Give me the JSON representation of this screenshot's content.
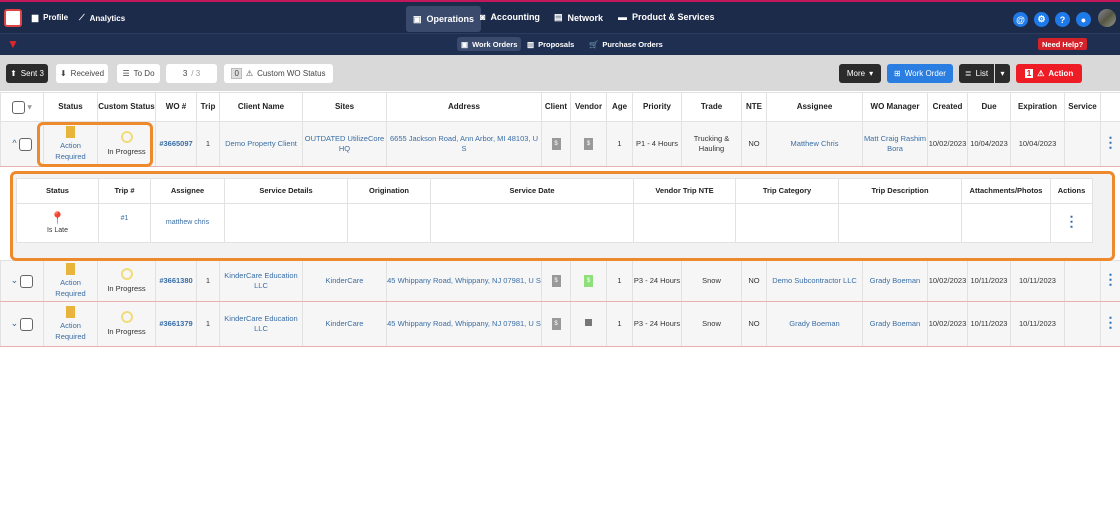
{
  "nav": {
    "items": [
      {
        "label": "Profile",
        "icon": "building-icon"
      },
      {
        "label": "Analytics",
        "icon": "chart-line-icon"
      }
    ],
    "main": [
      {
        "label": "Operations",
        "icon": "clipboard-icon",
        "active": true
      },
      {
        "label": "Accounting",
        "icon": "money-icon"
      },
      {
        "label": "Network",
        "icon": "network-icon"
      },
      {
        "label": "Product & Services",
        "icon": "briefcase-icon"
      }
    ],
    "right_icons": [
      "at-icon",
      "gear-icon",
      "help-icon",
      "chat-icon"
    ]
  },
  "subnav": {
    "items": [
      "Work Orders",
      "Proposals",
      "Purchase Orders"
    ],
    "need_help": "Need Help?"
  },
  "toolbar": {
    "sent": "Sent 3",
    "received": "Received",
    "todo": "To Do",
    "page_current": "3",
    "page_total": "/ 3",
    "custom_count": "0",
    "custom_status": "Custom WO Status",
    "more": "More",
    "work_order": "Work Order",
    "list": "List",
    "action_count": "1",
    "action": "Action"
  },
  "colors": {
    "navy": "#1d2b4b",
    "accent_blue": "#1e7ae8",
    "action_red": "#ee1c25",
    "highlight_orange": "#ee8a2e"
  },
  "columns": [
    "Status",
    "Custom Status",
    "WO #",
    "Trip",
    "Client Name",
    "Sites",
    "Address",
    "Client",
    "Vendor",
    "Age",
    "Priority",
    "Trade",
    "NTE",
    "Assignee",
    "WO Manager",
    "Created",
    "Due",
    "Expiration",
    "Service"
  ],
  "rows": [
    {
      "status": "Action Required",
      "custom": "In Progress",
      "wo": "#3665097",
      "trip": "1",
      "client": "Demo Property Client",
      "site": "OUTDATED UtilizeCore HQ",
      "address": "6655 Jackson Road, Ann Arbor, MI 48103, U S",
      "age": "1",
      "priority": "P1 - 4 Hours",
      "trade": "Trucking & Hauling",
      "nte": "NO",
      "assignee": "Matthew Chris",
      "manager": "Matt Craig Rashim Bora",
      "created": "10/02/2023",
      "due": "10/04/2023",
      "expiration": "10/04/2023",
      "service": ""
    },
    {
      "status": "Action Required",
      "custom": "In Progress",
      "wo": "#3661380",
      "trip": "1",
      "client": "KinderCare Education LLC",
      "site": "KinderCare",
      "address": "45 Whippany Road, Whippany, NJ 07981, U S",
      "age": "1",
      "priority": "P3 - 24 Hours",
      "trade": "Snow",
      "nte": "NO",
      "assignee": "Demo Subcontractor LLC",
      "manager": "Grady Boeman",
      "created": "10/02/2023",
      "due": "10/11/2023",
      "expiration": "10/11/2023",
      "service": ""
    },
    {
      "status": "Action Required",
      "custom": "In Progress",
      "wo": "#3661379",
      "trip": "1",
      "client": "KinderCare Education LLC",
      "site": "KinderCare",
      "address": "45 Whippany Road, Whippany, NJ 07981, U S",
      "age": "1",
      "priority": "P3 - 24 Hours",
      "trade": "Snow",
      "nte": "NO",
      "assignee": "Grady Boeman",
      "manager": "Grady Boeman",
      "created": "10/02/2023",
      "due": "10/11/2023",
      "expiration": "10/11/2023",
      "service": ""
    }
  ],
  "trips": {
    "columns": [
      "Status",
      "Trip #",
      "Assignee",
      "Service Details",
      "Origination",
      "Service Date",
      "Vendor Trip NTE",
      "Trip Category",
      "Trip Description",
      "Attachments/Photos",
      "Actions"
    ],
    "row": {
      "status": "Is Late",
      "trip": "#1",
      "assignee": "matthew chris"
    }
  }
}
